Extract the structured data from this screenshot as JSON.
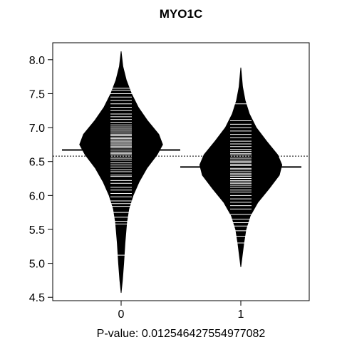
{
  "chart_data": {
    "type": "beanplot",
    "title": "MYO1C",
    "xlabel": "P-value: 0.012546427554977082",
    "ylabel": "",
    "categories": [
      "0",
      "1"
    ],
    "ylim": [
      4.45,
      8.25
    ],
    "yticks": [
      4.5,
      5.0,
      5.5,
      6.0,
      6.5,
      7.0,
      7.5,
      8.0
    ],
    "ytick_labels": [
      "4.5",
      "5.0",
      "5.5",
      "6.0",
      "6.5",
      "7.0",
      "7.5",
      "8.0"
    ],
    "overall_mean": 6.58,
    "groups": [
      {
        "category": "0",
        "mean": 6.67,
        "density_profile": [
          [
            4.57,
            0.0
          ],
          [
            4.75,
            0.03
          ],
          [
            5.0,
            0.06
          ],
          [
            5.3,
            0.09
          ],
          [
            5.6,
            0.13
          ],
          [
            5.8,
            0.18
          ],
          [
            6.0,
            0.28
          ],
          [
            6.2,
            0.42
          ],
          [
            6.4,
            0.6
          ],
          [
            6.6,
            0.84
          ],
          [
            6.75,
            0.97
          ],
          [
            6.9,
            0.88
          ],
          [
            7.1,
            0.62
          ],
          [
            7.3,
            0.4
          ],
          [
            7.5,
            0.24
          ],
          [
            7.7,
            0.12
          ],
          [
            7.9,
            0.04
          ],
          [
            8.12,
            0.0
          ]
        ],
        "observations": [
          5.12,
          5.58,
          5.62,
          5.68,
          5.75,
          5.84,
          5.88,
          5.92,
          5.98,
          6.03,
          6.08,
          6.12,
          6.18,
          6.22,
          6.28,
          6.3,
          6.35,
          6.38,
          6.42,
          6.45,
          6.48,
          6.52,
          6.55,
          6.58,
          6.6,
          6.62,
          6.64,
          6.66,
          6.68,
          6.7,
          6.72,
          6.74,
          6.76,
          6.78,
          6.8,
          6.82,
          6.84,
          6.86,
          6.88,
          6.9,
          6.92,
          6.95,
          6.98,
          7.01,
          7.04,
          7.08,
          7.12,
          7.16,
          7.2,
          7.25,
          7.3,
          7.35,
          7.4,
          7.45,
          7.5,
          7.55,
          7.58
        ]
      },
      {
        "category": "1",
        "mean": 6.42,
        "density_profile": [
          [
            4.95,
            0.0
          ],
          [
            5.1,
            0.03
          ],
          [
            5.3,
            0.07
          ],
          [
            5.5,
            0.12
          ],
          [
            5.7,
            0.22
          ],
          [
            5.9,
            0.4
          ],
          [
            6.1,
            0.66
          ],
          [
            6.3,
            0.9
          ],
          [
            6.45,
            0.96
          ],
          [
            6.6,
            0.86
          ],
          [
            6.8,
            0.6
          ],
          [
            7.0,
            0.36
          ],
          [
            7.2,
            0.2
          ],
          [
            7.4,
            0.1
          ],
          [
            7.6,
            0.04
          ],
          [
            7.88,
            0.0
          ]
        ],
        "observations": [
          5.3,
          5.4,
          5.48,
          5.55,
          5.6,
          5.65,
          5.72,
          5.8,
          5.85,
          5.9,
          5.95,
          6.0,
          6.05,
          6.08,
          6.12,
          6.15,
          6.18,
          6.2,
          6.22,
          6.25,
          6.28,
          6.3,
          6.32,
          6.35,
          6.38,
          6.4,
          6.42,
          6.44,
          6.46,
          6.48,
          6.5,
          6.52,
          6.55,
          6.58,
          6.6,
          6.62,
          6.65,
          6.68,
          6.72,
          6.76,
          6.8,
          6.85,
          6.9,
          6.95,
          7.0,
          7.05,
          7.1,
          7.35
        ]
      }
    ]
  }
}
